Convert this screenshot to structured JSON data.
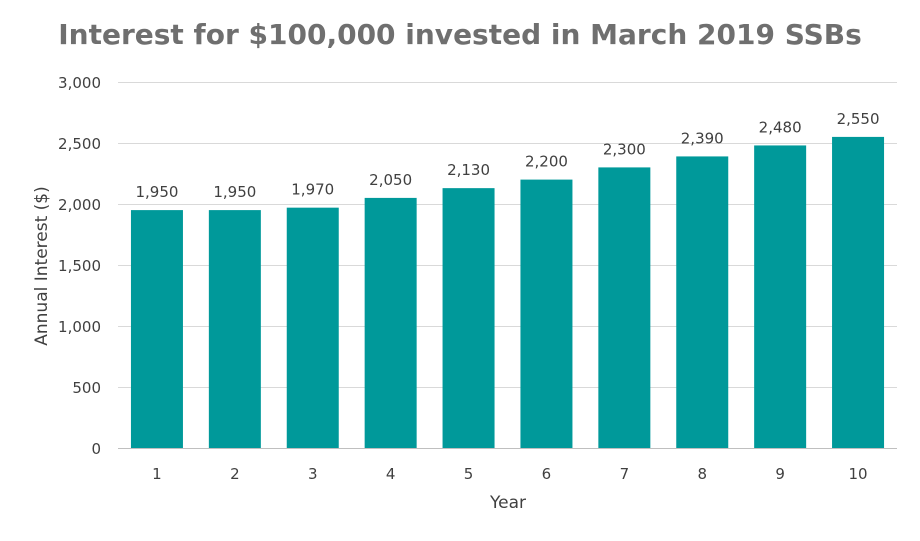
{
  "chart_data": {
    "type": "bar",
    "title": "Interest for $100,000 invested in March 2019 SSBs",
    "xlabel": "Year",
    "ylabel": "Annual Interest ($)",
    "categories": [
      "1",
      "2",
      "3",
      "4",
      "5",
      "6",
      "7",
      "8",
      "9",
      "10"
    ],
    "values": [
      1950,
      1950,
      1970,
      2050,
      2130,
      2200,
      2300,
      2390,
      2480,
      2550
    ],
    "value_labels": [
      "1,950",
      "1,950",
      "1,970",
      "2,050",
      "2,130",
      "2,200",
      "2,300",
      "2,390",
      "2,480",
      "2,550"
    ],
    "ylim": [
      0,
      3000
    ],
    "yticks": [
      0,
      500,
      1000,
      1500,
      2000,
      2500,
      3000
    ],
    "ytick_labels": [
      "0",
      "500",
      "1,000",
      "1,500",
      "2,000",
      "2,500",
      "3,000"
    ],
    "grid": true,
    "legend": "none",
    "bar_color": "#00999a",
    "grid_color": "#d9d9d9",
    "text_color": "#404040"
  }
}
